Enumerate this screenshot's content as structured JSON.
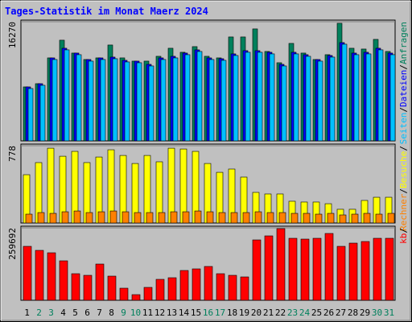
{
  "chart_data": {
    "type": "bar",
    "title": "Tages-Statistik im Monat Maerz 2024",
    "separator": "/",
    "categories": [
      "1",
      "2",
      "3",
      "4",
      "5",
      "6",
      "7",
      "8",
      "9",
      "10",
      "11",
      "12",
      "13",
      "14",
      "15",
      "16",
      "17",
      "18",
      "19",
      "20",
      "21",
      "22",
      "23",
      "24",
      "25",
      "26",
      "27",
      "28",
      "29",
      "30",
      "31"
    ],
    "category_colors": [
      "#000000",
      "#00805c",
      "#00805c",
      "#000000",
      "#000000",
      "#000000",
      "#000000",
      "#000000",
      "#00805c",
      "#00805c",
      "#000000",
      "#000000",
      "#000000",
      "#000000",
      "#000000",
      "#00805c",
      "#00805c",
      "#000000",
      "#000000",
      "#000000",
      "#000000",
      "#000000",
      "#00805c",
      "#00805c",
      "#000000",
      "#000000",
      "#000000",
      "#000000",
      "#000000",
      "#00805c",
      "#00805c"
    ],
    "panels": [
      {
        "ylim": [
          0,
          16270
        ],
        "yticks": [
          16270
        ],
        "series": [
          {
            "name": "Anfragen",
            "color": "#00805c",
            "values": [
              7370,
              7810,
              11330,
              13750,
              11990,
              11110,
              11330,
              13090,
              11330,
              10890,
              10890,
              11550,
              12650,
              12100,
              12870,
              11550,
              11330,
              14190,
              14190,
              15290,
              12210,
              10670,
              13310,
              11990,
              11110,
              11770,
              16060,
              12650,
              12540,
              13860,
              12210
            ]
          },
          {
            "name": "Dateien",
            "color": "#0000ff",
            "values": [
              7370,
              7810,
              11330,
              12650,
              11990,
              11110,
              11330,
              11440,
              11000,
              10890,
              10450,
              11330,
              11550,
              11990,
              12430,
              11330,
              11220,
              11880,
              12320,
              12320,
              12100,
              10450,
              12100,
              11770,
              11110,
              11660,
              13420,
              11990,
              12100,
              12650,
              11990
            ]
          },
          {
            "name": "Seiten",
            "color": "#00c0ff",
            "values": [
              7150,
              7590,
              11110,
              12430,
              11770,
              10890,
              11110,
              11220,
              10780,
              10670,
              10230,
              11110,
              11330,
              11770,
              12210,
              11110,
              11000,
              11660,
              12100,
              12100,
              11880,
              10230,
              11880,
              11550,
              10890,
              11440,
              13200,
              11770,
              11880,
              12430,
              11770
            ]
          }
        ]
      },
      {
        "ylim": [
          0,
          778
        ],
        "yticks": [
          778
        ],
        "series": [
          {
            "name": "Besuche",
            "color": "#ffff00",
            "values": [
              486,
              608,
              753,
              672,
              721,
              608,
              664,
              737,
              680,
              599,
              680,
              616,
              753,
              745,
              721,
              599,
              510,
              543,
              462,
              308,
              292,
              292,
              219,
              211,
              211,
              194,
              138,
              138,
              227,
              259,
              259
            ]
          },
          {
            "name": "Rechner",
            "color": "#ff8000",
            "values": [
              89,
              105,
              97,
              113,
              121,
              105,
              113,
              121,
              113,
              105,
              105,
              105,
              113,
              113,
              121,
              113,
              105,
              105,
              105,
              113,
              105,
              105,
              97,
              97,
              89,
              97,
              81,
              89,
              97,
              89,
              97
            ]
          }
        ]
      },
      {
        "ylim": [
          0,
          259692
        ],
        "yticks": [
          259692
        ],
        "series": [
          {
            "name": "kb",
            "color": "#ff0000",
            "values": [
              193300,
              178870,
              170220,
              141370,
              95210,
              89440,
              129830,
              86550,
              43280,
              20200,
              46160,
              75010,
              80780,
              106750,
              112520,
              121170,
              95210,
              89440,
              83670,
              216380,
              230800,
              256770,
              222150,
              219260,
              222150,
              239460,
              193300,
              204840,
              210610,
              222150,
              222150
            ]
          }
        ]
      }
    ]
  }
}
